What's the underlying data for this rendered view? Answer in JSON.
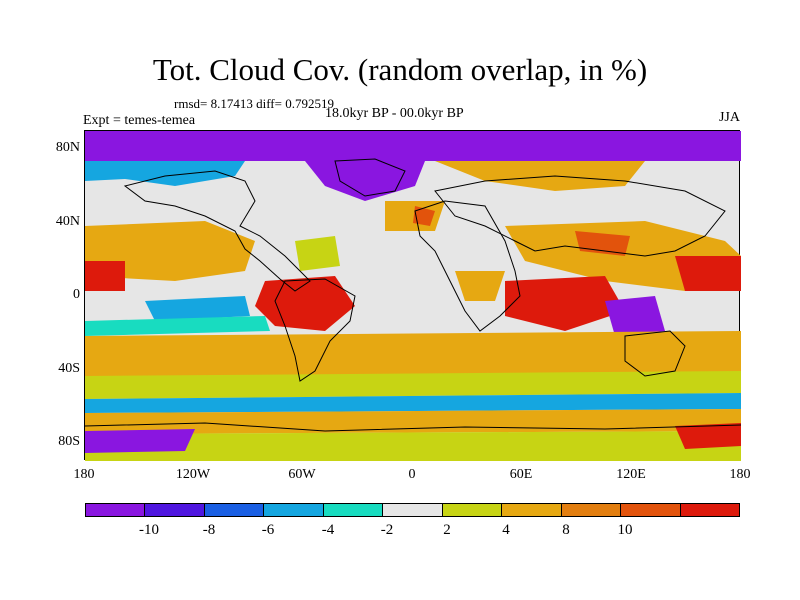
{
  "title": "Tot. Cloud Cov. (random overlap, in %)",
  "stats": "rmsd= 8.17413 diff= 0.792519",
  "experiment": "Expt = temes-temea",
  "period": "18.0kyr BP - 00.0kyr BP",
  "season": "JJA",
  "map": {
    "projection": "cylindrical equidistant",
    "lat_labels": [
      "80N",
      "40N",
      "0",
      "40S",
      "80S"
    ],
    "lon_labels": [
      "180",
      "120W",
      "60W",
      "0",
      "60E",
      "120E",
      "180"
    ]
  },
  "colorbar": {
    "colors": [
      "#8a16e0",
      "#4f16e0",
      "#1a5fe3",
      "#15a6e0",
      "#18dcc0",
      "#e6e6e6",
      "#c7d414",
      "#e6a812",
      "#e27e10",
      "#e2530c",
      "#dd1a0c"
    ],
    "labels": [
      "-10",
      "-8",
      "-6",
      "-4",
      "-2",
      "2",
      "4",
      "8",
      "10"
    ]
  }
}
